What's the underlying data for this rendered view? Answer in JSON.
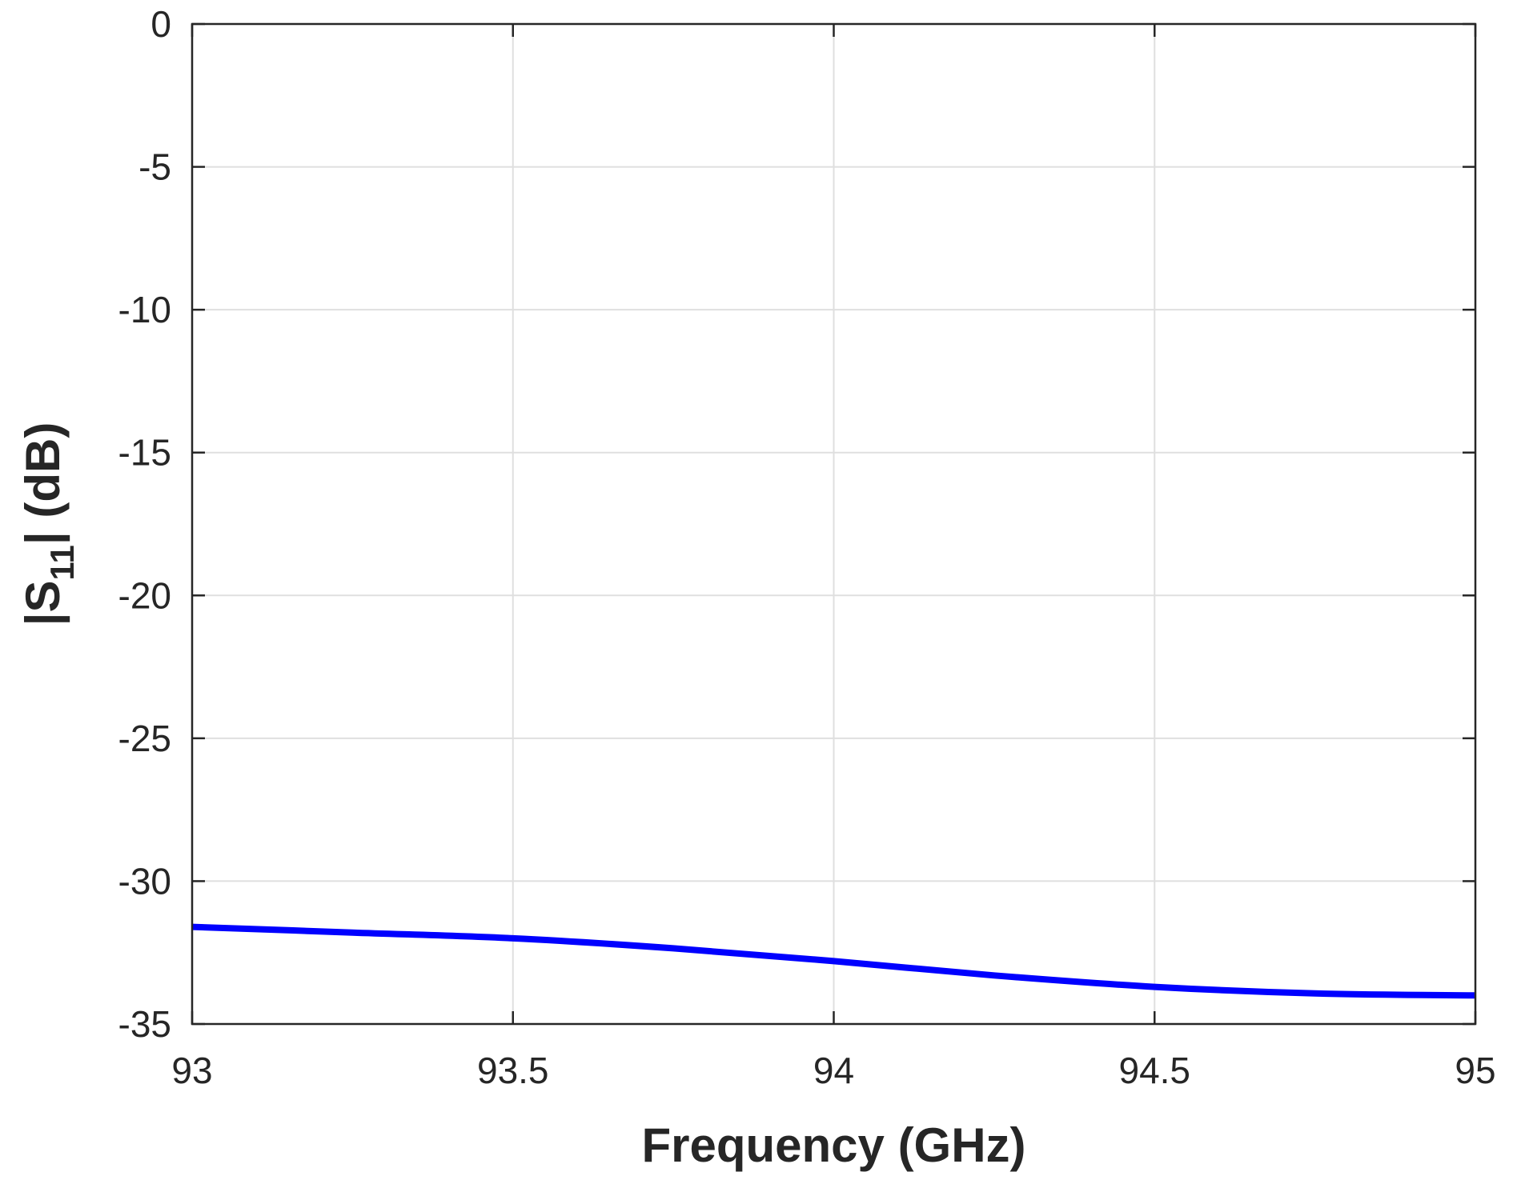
{
  "chart_data": {
    "type": "line",
    "title": "",
    "xlabel": "Frequency (GHz)",
    "ylabel": {
      "prefix": "|S",
      "subscript": "11",
      "suffix": "| (dB)"
    },
    "xlim": [
      93,
      95
    ],
    "ylim": [
      -35,
      0
    ],
    "xticks": [
      93,
      93.5,
      94,
      94.5,
      95
    ],
    "yticks": [
      0,
      -5,
      -10,
      -15,
      -20,
      -25,
      -30,
      -35
    ],
    "grid": true,
    "colors": {
      "line": "#0000ff",
      "grid": "#dfdfdf",
      "axis": "#262626"
    },
    "series": [
      {
        "x": [
          93.0,
          93.25,
          93.5,
          93.75,
          94.0,
          94.25,
          94.5,
          94.75,
          95.0
        ],
        "y": [
          -31.6,
          -31.8,
          -32.0,
          -32.35,
          -32.8,
          -33.3,
          -33.7,
          -33.93,
          -34.0
        ]
      }
    ]
  }
}
